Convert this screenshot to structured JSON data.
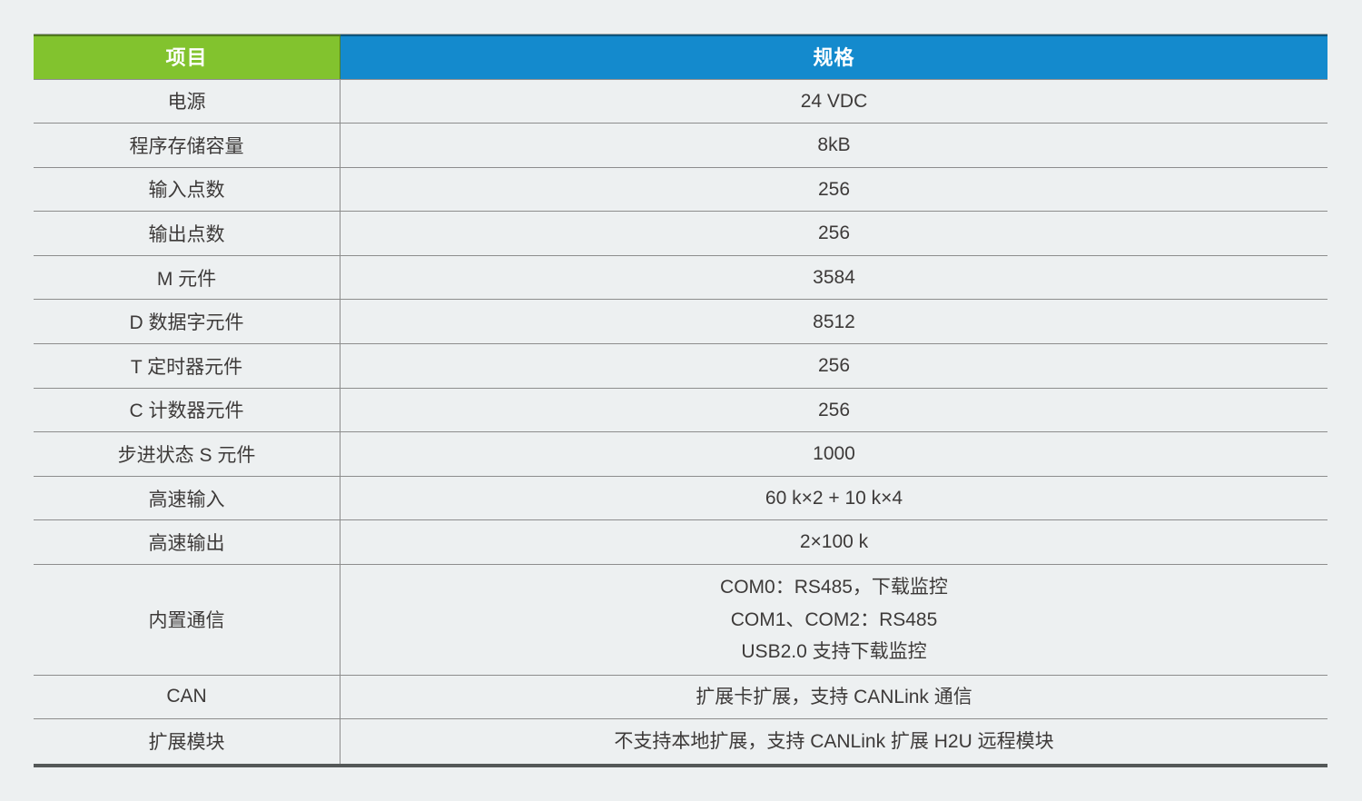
{
  "table": {
    "columns": [
      {
        "label": "项目",
        "color": "#82c32e"
      },
      {
        "label": "规格",
        "color": "#148acd"
      }
    ],
    "header_text_color": "#ffffff",
    "body_text_color": "#3d3a39",
    "border_color": "#8d8d8d",
    "rows": [
      {
        "item": "电源",
        "spec": [
          "24 VDC"
        ]
      },
      {
        "item": "程序存储容量",
        "spec": [
          "8kB"
        ]
      },
      {
        "item": "输入点数",
        "spec": [
          "256"
        ]
      },
      {
        "item": "输出点数",
        "spec": [
          "256"
        ]
      },
      {
        "item": "M 元件",
        "spec": [
          "3584"
        ]
      },
      {
        "item": "D 数据字元件",
        "spec": [
          "8512"
        ]
      },
      {
        "item": "T 定时器元件",
        "spec": [
          "256"
        ]
      },
      {
        "item": "C 计数器元件",
        "spec": [
          "256"
        ]
      },
      {
        "item": "步进状态 S 元件",
        "spec": [
          "1000"
        ]
      },
      {
        "item": "高速输入",
        "spec": [
          "60 k×2 + 10 k×4"
        ]
      },
      {
        "item": "高速输出",
        "spec": [
          "2×100 k"
        ]
      },
      {
        "item": "内置通信",
        "spec": [
          "COM0：RS485，下载监控",
          "COM1、COM2：RS485",
          "USB2.0 支持下载监控"
        ]
      },
      {
        "item": "CAN",
        "spec": [
          "扩展卡扩展，支持 CANLink 通信"
        ]
      },
      {
        "item": "扩展模块",
        "spec": [
          "不支持本地扩展，支持 CANLink 扩展 H2U 远程模块"
        ]
      }
    ]
  }
}
